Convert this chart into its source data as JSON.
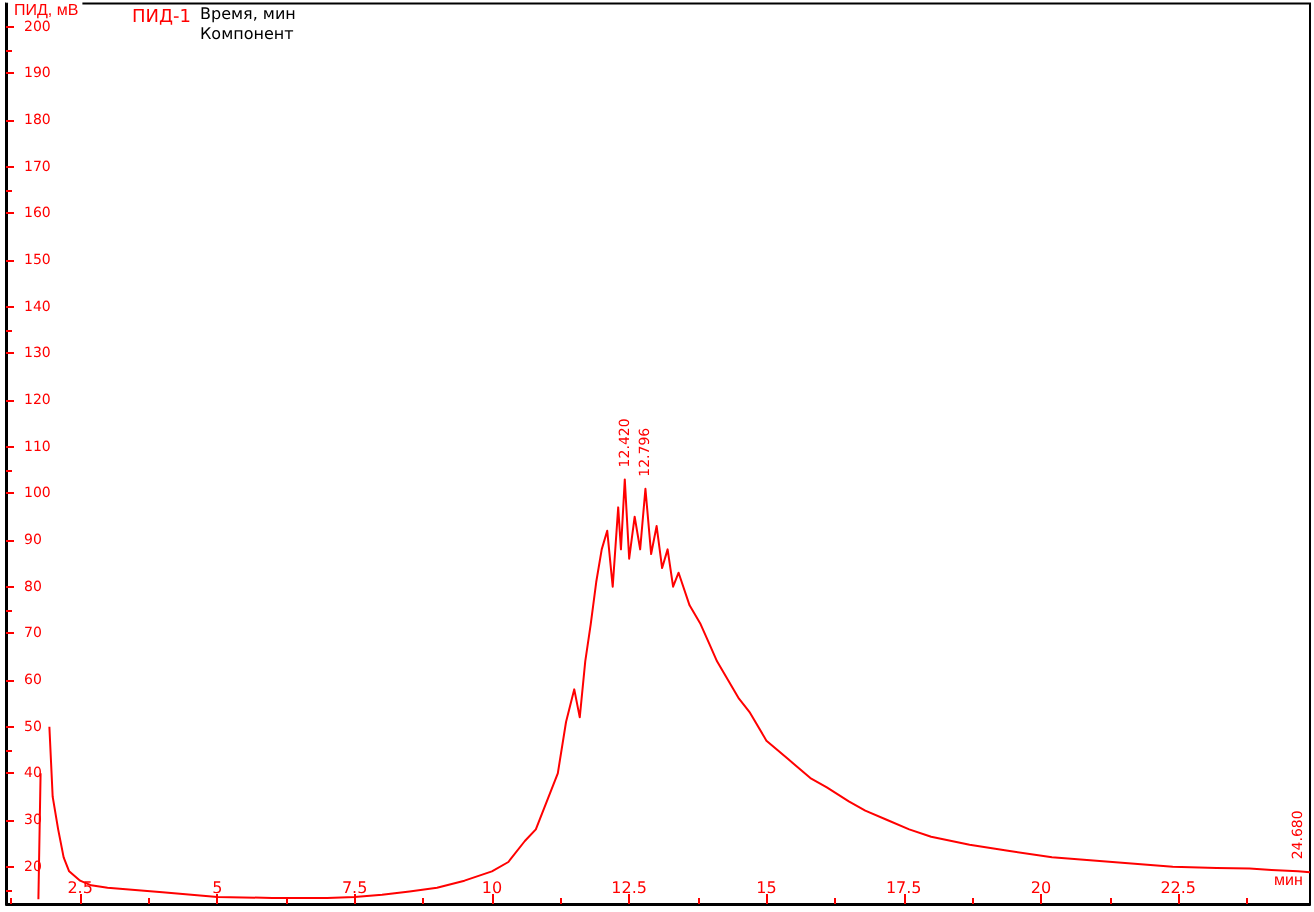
{
  "chart_data": {
    "type": "line",
    "ylabel": "ПИД, мВ",
    "xlabel": "мин",
    "legend": "top left",
    "annotations": [
      {
        "text": "12.420",
        "x": 12.42,
        "y": 103
      },
      {
        "text": "12.796",
        "x": 12.796,
        "y": 101
      },
      {
        "text": "24.680",
        "x": 24.68,
        "y": 19
      },
      "Время, мин",
      "Компонент"
    ],
    "xlim": [
      1.15,
      24.9
    ],
    "ylim": [
      12,
      205
    ],
    "xticks": [
      2.5,
      5,
      7.5,
      10,
      12.5,
      15,
      17.5,
      20,
      22.5
    ],
    "yticks": [
      20,
      30,
      40,
      50,
      60,
      70,
      80,
      90,
      100,
      110,
      120,
      130,
      140,
      150,
      160,
      170,
      180,
      190,
      200
    ],
    "grid": false,
    "marker": "none",
    "line_style": "solid",
    "series": [
      {
        "name": "ПИД-1",
        "color": "#ff0000",
        "x": [
          1.74,
          1.78,
          1.82,
          1.88,
          1.94,
          2.0,
          2.1,
          2.2,
          2.3,
          2.5,
          2.7,
          3.0,
          3.5,
          4.0,
          5.0,
          6.0,
          7.0,
          7.5,
          8.0,
          8.5,
          9.0,
          9.5,
          10.0,
          10.3,
          10.6,
          10.8,
          11.0,
          11.2,
          11.35,
          11.5,
          11.6,
          11.7,
          11.8,
          11.9,
          12.0,
          12.1,
          12.2,
          12.3,
          12.35,
          12.42,
          12.5,
          12.6,
          12.7,
          12.796,
          12.9,
          13.0,
          13.1,
          13.2,
          13.3,
          13.4,
          13.6,
          13.8,
          13.95,
          14.1,
          14.3,
          14.5,
          14.7,
          15.0,
          15.2,
          15.4,
          15.8,
          16.1,
          16.5,
          16.8,
          17.2,
          17.6,
          18.0,
          18.7,
          19.4,
          20.2,
          21.3,
          22.4,
          23.2,
          23.8,
          24.2,
          24.68,
          24.9
        ],
        "values": [
          13,
          40,
          null,
          null,
          50,
          35,
          28,
          22,
          19,
          17,
          16,
          15.5,
          15,
          14.5,
          13.5,
          13.3,
          13.3,
          13.5,
          14,
          14.7,
          15.5,
          17,
          19,
          21,
          25.5,
          28,
          34,
          40,
          51,
          58,
          52,
          64,
          72,
          81,
          88,
          92,
          80,
          97,
          88,
          103,
          86,
          95,
          88,
          101,
          87,
          93,
          84,
          88,
          80,
          83,
          76,
          72,
          68,
          64,
          60,
          56,
          53,
          47,
          45,
          43,
          39,
          37,
          34,
          32,
          30,
          28,
          26.4,
          24.7,
          23.4,
          22,
          21,
          20,
          19.7,
          19.6,
          19.3,
          19,
          18.8
        ]
      }
    ]
  }
}
